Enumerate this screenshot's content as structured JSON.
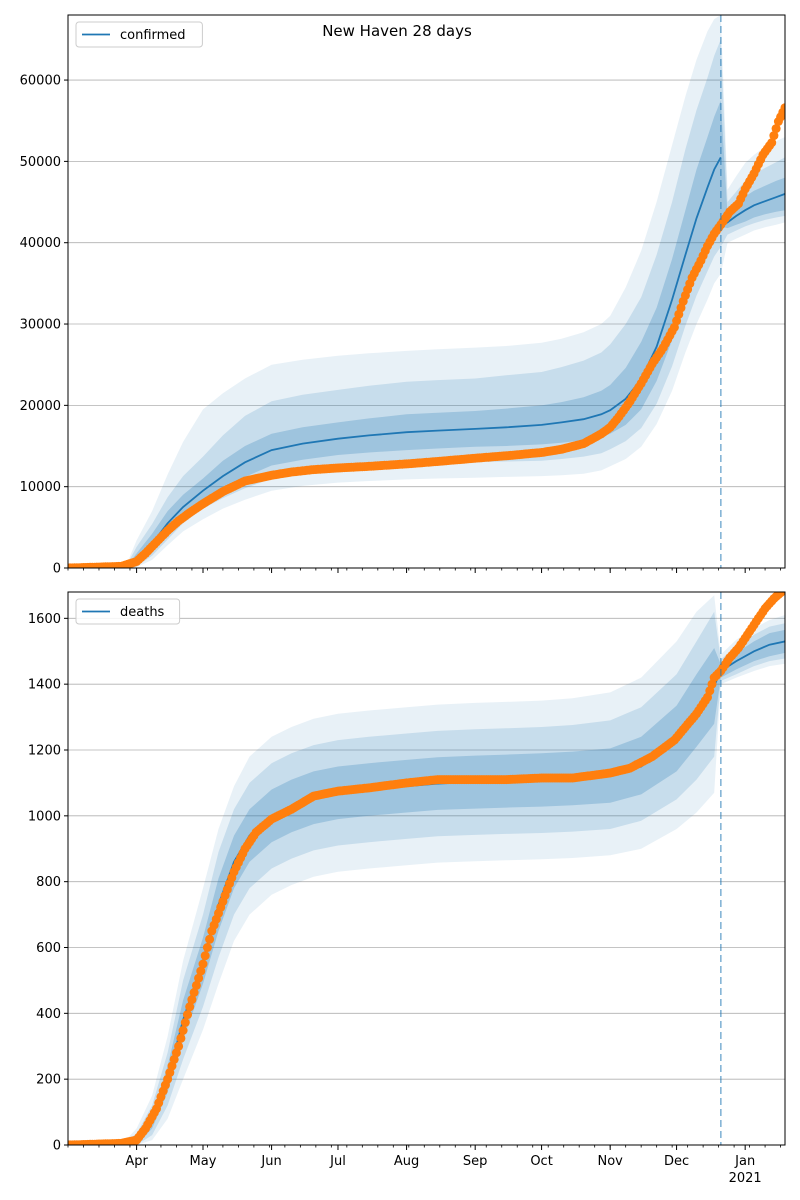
{
  "figure": {
    "title": "New Haven 28 days"
  },
  "chart_data": [
    {
      "type": "line",
      "title": "",
      "xlabel": "",
      "ylabel": "",
      "legend": {
        "label": "confirmed",
        "placement": "top-left"
      },
      "ylim": [
        0,
        68000
      ],
      "yticks": [
        0,
        10000,
        20000,
        30000,
        40000,
        50000,
        60000
      ],
      "xlim": [
        "2020-03-01",
        "2021-01-19"
      ],
      "forecast_start": "2020-12-21",
      "grid": "horizontal",
      "colors": {
        "model": "#1f77b4",
        "observed": "#ff7f0e",
        "band": "#1f77b4"
      },
      "model": {
        "x": [
          "2020-03-01",
          "2020-03-20",
          "2020-03-28",
          "2020-04-01",
          "2020-04-08",
          "2020-04-15",
          "2020-04-22",
          "2020-05-01",
          "2020-05-10",
          "2020-05-20",
          "2020-06-01",
          "2020-06-15",
          "2020-07-01",
          "2020-07-15",
          "2020-08-01",
          "2020-08-15",
          "2020-09-01",
          "2020-09-15",
          "2020-10-01",
          "2020-10-10",
          "2020-10-20",
          "2020-10-28",
          "2020-11-01",
          "2020-11-08",
          "2020-11-15",
          "2020-11-22",
          "2020-11-29",
          "2020-12-05",
          "2020-12-10",
          "2020-12-15",
          "2020-12-18",
          "2020-12-21",
          "2020-12-24",
          "2020-12-28",
          "2021-01-01",
          "2021-01-05",
          "2021-01-10",
          "2021-01-15",
          "2021-01-19"
        ],
        "y": [
          0,
          0,
          200,
          1000,
          3000,
          5500,
          7500,
          9500,
          11300,
          13000,
          14500,
          15300,
          15900,
          16300,
          16700,
          16900,
          17100,
          17300,
          17600,
          17900,
          18300,
          18900,
          19400,
          20800,
          23200,
          27200,
          33000,
          38500,
          43000,
          46800,
          49000,
          50500,
          42500,
          43300,
          44000,
          44600,
          45100,
          45600,
          46000
        ],
        "y_forecast_start": 42000,
        "bands": [
          {
            "lower": [
              0,
              0,
              0,
              400,
              2000,
              4500,
              6500,
              8300,
              9900,
              11200,
              12600,
              13300,
              13900,
              14200,
              14500,
              14700,
              14900,
              15000,
              15200,
              15400,
              15700,
              16100,
              16500,
              17600,
              19500,
              23000,
              28000,
              33000,
              37000,
              40000,
              41500,
              42000,
              41800,
              42200,
              42600,
              43100,
              43500,
              43800,
              44000
            ],
            "upper": [
              0,
              0,
              400,
              1800,
              4200,
              7000,
              9000,
              11000,
              13200,
              15000,
              16500,
              17300,
              17900,
              18400,
              18900,
              19100,
              19300,
              19600,
              20000,
              20400,
              21000,
              21800,
              22500,
              24600,
              27800,
              32000,
              38000,
              44000,
              49000,
              53000,
              55500,
              57500,
              43500,
              44600,
              45700,
              46400,
              47000,
              47600,
              48000
            ]
          },
          {
            "lower": [
              0,
              0,
              0,
              200,
              1500,
              3500,
              5500,
              7300,
              8600,
              9800,
              11000,
              11600,
              12100,
              12400,
              12600,
              12800,
              13000,
              13100,
              13200,
              13400,
              13700,
              14100,
              14600,
              15600,
              17200,
              20200,
              24800,
              29800,
              33500,
              36500,
              38300,
              39500,
              41000,
              41500,
              42000,
              42400,
              42800,
              43100,
              43300
            ],
            "upper": [
              0,
              0,
              600,
              2600,
              5400,
              8700,
              11300,
              13700,
              16300,
              18700,
              20500,
              21300,
              21900,
              22400,
              22900,
              23100,
              23300,
              23700,
              24100,
              24700,
              25500,
              26500,
              27500,
              30000,
              33300,
              38500,
              45000,
              51500,
              56300,
              60300,
              63000,
              65000,
              45000,
              46300,
              47600,
              48400,
              49200,
              49900,
              50500
            ]
          },
          {
            "lower": [
              0,
              0,
              0,
              100,
              1000,
              2800,
              4500,
              6000,
              7300,
              8400,
              9500,
              10100,
              10500,
              10700,
              10900,
              11000,
              11100,
              11200,
              11300,
              11400,
              11600,
              12000,
              12500,
              13400,
              14900,
              17700,
              21800,
              26500,
              30000,
              33000,
              35000,
              36200,
              40000,
              40500,
              41000,
              41500,
              41900,
              42200,
              42500
            ],
            "upper": [
              0,
              0,
              800,
              3400,
              7000,
              11500,
              15500,
              19500,
              21500,
              23300,
              25000,
              25600,
              26100,
              26400,
              26700,
              26900,
              27100,
              27300,
              27700,
              28200,
              29000,
              30000,
              31000,
              34500,
              39000,
              45000,
              52000,
              58000,
              62500,
              66000,
              67500,
              68000,
              46500,
              48200,
              49800,
              50800,
              51800,
              52500,
              53000
            ]
          }
        ]
      },
      "observed": {
        "x": [
          "2020-03-01",
          "2020-03-25",
          "2020-04-01",
          "2020-04-05",
          "2020-04-10",
          "2020-04-15",
          "2020-04-20",
          "2020-04-25",
          "2020-05-01",
          "2020-05-10",
          "2020-05-20",
          "2020-06-01",
          "2020-06-10",
          "2020-06-20",
          "2020-07-01",
          "2020-07-15",
          "2020-08-01",
          "2020-08-15",
          "2020-09-01",
          "2020-09-15",
          "2020-10-01",
          "2020-10-10",
          "2020-10-20",
          "2020-10-28",
          "2020-11-01",
          "2020-11-05",
          "2020-11-10",
          "2020-11-15",
          "2020-11-20",
          "2020-11-25",
          "2020-11-30",
          "2020-12-04",
          "2020-12-08",
          "2020-12-12",
          "2020-12-15",
          "2020-12-18",
          "2020-12-21",
          "2020-12-25",
          "2020-12-29",
          "2021-01-01",
          "2021-01-05",
          "2021-01-09",
          "2021-01-13",
          "2021-01-16",
          "2021-01-19"
        ],
        "y": [
          0,
          200,
          800,
          1800,
          3200,
          4600,
          5800,
          6800,
          7900,
          9400,
          10700,
          11400,
          11800,
          12100,
          12300,
          12500,
          12800,
          13100,
          13500,
          13800,
          14200,
          14600,
          15300,
          16500,
          17300,
          18600,
          20500,
          22700,
          25100,
          27100,
          29600,
          32800,
          35700,
          37800,
          39600,
          41100,
          42200,
          43800,
          44800,
          46600,
          48500,
          50800,
          52300,
          54900,
          56600
        ]
      }
    },
    {
      "type": "line",
      "title": "",
      "xlabel": "",
      "ylabel": "",
      "legend": {
        "label": "deaths",
        "placement": "top-left"
      },
      "ylim": [
        0,
        1680
      ],
      "yticks": [
        0,
        200,
        400,
        600,
        800,
        1000,
        1200,
        1400,
        1600
      ],
      "xlim": [
        "2020-03-01",
        "2021-01-19"
      ],
      "forecast_start": "2020-12-21",
      "grid": "horizontal",
      "xticks": [
        {
          "date": "2020-04-01",
          "label": "Apr"
        },
        {
          "date": "2020-05-01",
          "label": "May"
        },
        {
          "date": "2020-06-01",
          "label": "Jun"
        },
        {
          "date": "2020-07-01",
          "label": "Jul"
        },
        {
          "date": "2020-08-01",
          "label": "Aug"
        },
        {
          "date": "2020-09-01",
          "label": "Sep"
        },
        {
          "date": "2020-10-01",
          "label": "Oct"
        },
        {
          "date": "2020-11-01",
          "label": "Nov"
        },
        {
          "date": "2020-12-01",
          "label": "Dec"
        },
        {
          "date": "2021-01-01",
          "label": "Jan"
        }
      ],
      "xtick_year": {
        "date": "2021-01-01",
        "label": "2021"
      },
      "colors": {
        "model": "#1f77b4",
        "observed": "#ff7f0e",
        "band": "#1f77b4"
      },
      "model": {
        "x": [
          "2020-03-01",
          "2020-03-25",
          "2020-04-01",
          "2020-04-08",
          "2020-04-15",
          "2020-04-22",
          "2020-05-01",
          "2020-05-08",
          "2020-05-15",
          "2020-05-22",
          "2020-06-01",
          "2020-06-10",
          "2020-06-20",
          "2020-07-01",
          "2020-07-15",
          "2020-08-01",
          "2020-08-15",
          "2020-09-01",
          "2020-09-15",
          "2020-10-01",
          "2020-10-15",
          "2020-11-01",
          "2020-11-15",
          "2020-12-01",
          "2020-12-10",
          "2020-12-18",
          "2020-12-21",
          "2020-12-28",
          "2021-01-05",
          "2021-01-12",
          "2021-01-19"
        ],
        "y": [
          0,
          0,
          10,
          70,
          200,
          380,
          560,
          730,
          860,
          940,
          1000,
          1030,
          1055,
          1070,
          1080,
          1090,
          1098,
          1103,
          1105,
          1108,
          1112,
          1122,
          1150,
          1235,
          1320,
          1395,
          1440,
          1470,
          1500,
          1520,
          1530
        ],
        "bands": [
          {
            "lower": [
              0,
              0,
              0,
              50,
              160,
              320,
              490,
              650,
              780,
              860,
              920,
              950,
              975,
              990,
              1000,
              1010,
              1018,
              1022,
              1025,
              1028,
              1032,
              1040,
              1065,
              1135,
              1210,
              1280,
              1420,
              1445,
              1470,
              1485,
              1495
            ],
            "upper": [
              0,
              0,
              20,
              95,
              240,
              440,
              630,
              810,
              940,
              1020,
              1080,
              1110,
              1135,
              1150,
              1160,
              1170,
              1178,
              1183,
              1186,
              1190,
              1195,
              1205,
              1240,
              1335,
              1430,
              1510,
              1460,
              1495,
              1530,
              1555,
              1565
            ]
          },
          {
            "lower": [
              0,
              0,
              0,
              30,
              120,
              260,
              420,
              570,
              700,
              780,
              840,
              870,
              895,
              910,
              920,
              930,
              938,
              942,
              945,
              948,
              952,
              960,
              985,
              1050,
              1110,
              1180,
              1410,
              1430,
              1455,
              1470,
              1478
            ],
            "upper": [
              0,
              0,
              35,
              120,
              280,
              500,
              700,
              890,
              1020,
              1100,
              1160,
              1190,
              1215,
              1230,
              1240,
              1250,
              1258,
              1263,
              1266,
              1270,
              1276,
              1290,
              1330,
              1430,
              1530,
              1620,
              1475,
              1515,
              1550,
              1575,
              1585
            ]
          },
          {
            "lower": [
              0,
              0,
              0,
              15,
              80,
              200,
              350,
              490,
              620,
              700,
              760,
              790,
              815,
              830,
              840,
              850,
              858,
              862,
              865,
              868,
              872,
              880,
              900,
              960,
              1010,
              1070,
              1400,
              1420,
              1440,
              1455,
              1462
            ],
            "upper": [
              0,
              0,
              50,
              150,
              330,
              560,
              780,
              960,
              1090,
              1180,
              1240,
              1270,
              1295,
              1310,
              1320,
              1330,
              1338,
              1343,
              1346,
              1350,
              1357,
              1375,
              1420,
              1530,
              1620,
              1670,
              1490,
              1535,
              1570,
              1595,
              1610
            ]
          }
        ]
      },
      "observed": {
        "x": [
          "2020-03-01",
          "2020-03-25",
          "2020-04-01",
          "2020-04-05",
          "2020-04-10",
          "2020-04-15",
          "2020-04-20",
          "2020-04-25",
          "2020-05-01",
          "2020-05-05",
          "2020-05-10",
          "2020-05-15",
          "2020-05-20",
          "2020-05-25",
          "2020-06-01",
          "2020-06-10",
          "2020-06-20",
          "2020-07-01",
          "2020-07-15",
          "2020-08-01",
          "2020-08-15",
          "2020-09-01",
          "2020-09-15",
          "2020-10-01",
          "2020-10-15",
          "2020-11-01",
          "2020-11-10",
          "2020-11-20",
          "2020-11-30",
          "2020-12-05",
          "2020-12-10",
          "2020-12-15",
          "2020-12-18",
          "2020-12-21",
          "2020-12-25",
          "2020-12-29",
          "2021-01-02",
          "2021-01-06",
          "2021-01-10",
          "2021-01-14",
          "2021-01-19"
        ],
        "y": [
          0,
          5,
          15,
          50,
          110,
          200,
          300,
          420,
          550,
          650,
          740,
          830,
          900,
          950,
          990,
          1020,
          1060,
          1075,
          1085,
          1100,
          1110,
          1110,
          1110,
          1115,
          1115,
          1130,
          1145,
          1180,
          1230,
          1270,
          1310,
          1360,
          1420,
          1440,
          1480,
          1510,
          1550,
          1590,
          1630,
          1660,
          1690
        ]
      }
    }
  ]
}
